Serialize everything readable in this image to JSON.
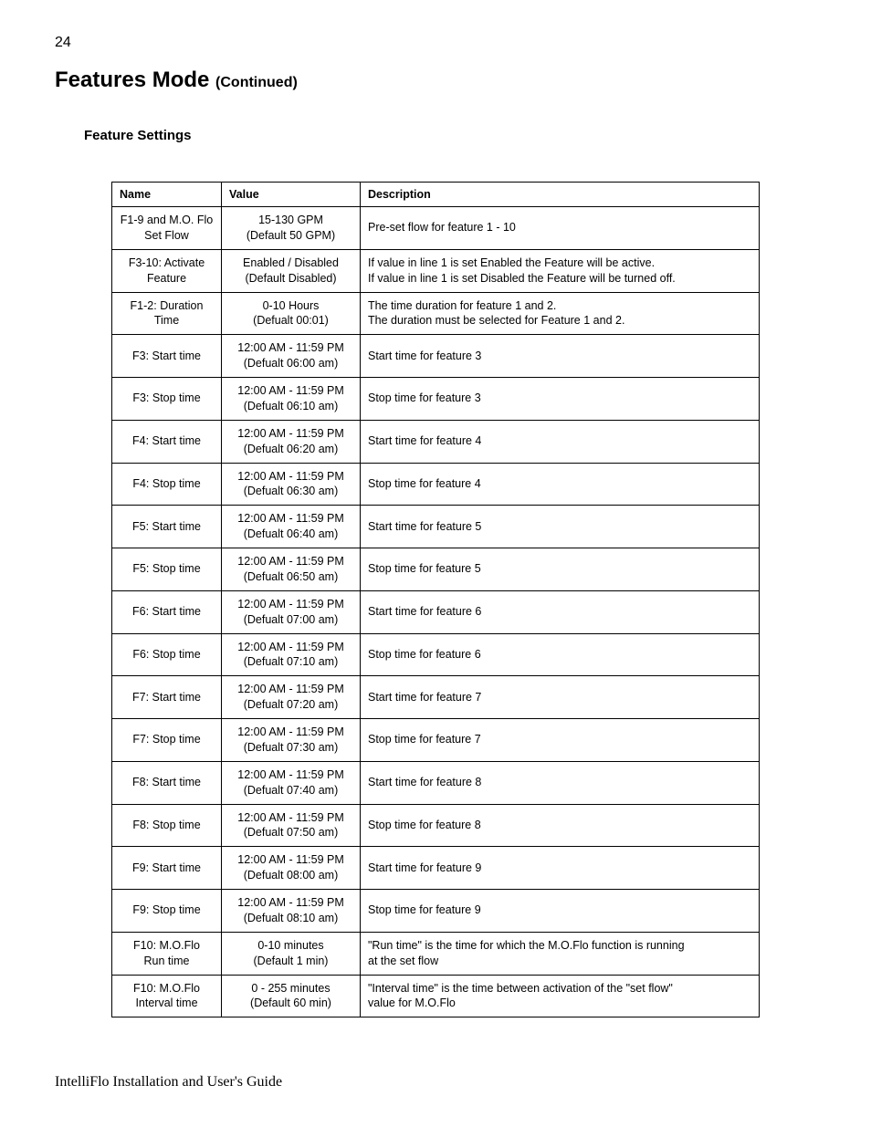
{
  "page_number": "24",
  "heading_main": "Features Mode",
  "heading_continued": "(Continued)",
  "section_heading": "Feature Settings",
  "footer_text": "IntelliFlo Installation and User's Guide",
  "table": {
    "headers": {
      "name": "Name",
      "value": "Value",
      "description": "Description"
    },
    "rows": [
      {
        "name_l1": "F1-9 and M.O. Flo",
        "name_l2": "Set Flow",
        "value_l1": "15-130 GPM",
        "value_l2": "(Default 50 GPM)",
        "desc_l1": "Pre-set flow for feature 1 - 10",
        "desc_l2": ""
      },
      {
        "name_l1": "F3-10: Activate",
        "name_l2": "Feature",
        "value_l1": "Enabled / Disabled",
        "value_l2": "(Default Disabled)",
        "desc_l1": "If value in line 1 is set Enabled the Feature will be active.",
        "desc_l2": "If value in line 1 is set Disabled the Feature will be turned off."
      },
      {
        "name_l1": "F1-2: Duration Time",
        "name_l2": "",
        "value_l1": "0-10 Hours",
        "value_l2": "(Defualt 00:01)",
        "desc_l1": "The time duration for feature 1 and 2.",
        "desc_l2": "The duration must be selected for Feature 1 and 2."
      },
      {
        "name_l1": "F3: Start time",
        "name_l2": "",
        "value_l1": "12:00 AM - 11:59 PM",
        "value_l2": "(Defualt 06:00 am)",
        "desc_l1": "Start time for feature 3",
        "desc_l2": ""
      },
      {
        "name_l1": "F3: Stop time",
        "name_l2": "",
        "value_l1": "12:00 AM - 11:59 PM",
        "value_l2": "(Defualt 06:10 am)",
        "desc_l1": "Stop time for feature 3",
        "desc_l2": ""
      },
      {
        "name_l1": "F4: Start time",
        "name_l2": "",
        "value_l1": "12:00 AM - 11:59 PM",
        "value_l2": "(Defualt 06:20 am)",
        "desc_l1": "Start time for feature 4",
        "desc_l2": ""
      },
      {
        "name_l1": "F4: Stop time",
        "name_l2": "",
        "value_l1": "12:00 AM - 11:59 PM",
        "value_l2": "(Defualt 06:30 am)",
        "desc_l1": "Stop time for feature 4",
        "desc_l2": ""
      },
      {
        "name_l1": "F5: Start time",
        "name_l2": "",
        "value_l1": "12:00 AM - 11:59 PM",
        "value_l2": "(Defualt 06:40 am)",
        "desc_l1": "Start time for feature 5",
        "desc_l2": ""
      },
      {
        "name_l1": "F5: Stop time",
        "name_l2": "",
        "value_l1": "12:00 AM - 11:59 PM",
        "value_l2": "(Defualt 06:50 am)",
        "desc_l1": "Stop time for feature 5",
        "desc_l2": ""
      },
      {
        "name_l1": "F6: Start time",
        "name_l2": "",
        "value_l1": "12:00 AM - 11:59 PM",
        "value_l2": "(Defualt 07:00 am)",
        "desc_l1": "Start time for feature 6",
        "desc_l2": ""
      },
      {
        "name_l1": "F6: Stop time",
        "name_l2": "",
        "value_l1": "12:00 AM - 11:59 PM",
        "value_l2": "(Defualt 07:10 am)",
        "desc_l1": "Stop time for feature 6",
        "desc_l2": ""
      },
      {
        "name_l1": "F7: Start time",
        "name_l2": "",
        "value_l1": "12:00 AM - 11:59 PM",
        "value_l2": "(Defualt 07:20 am)",
        "desc_l1": "Start time for feature 7",
        "desc_l2": ""
      },
      {
        "name_l1": "F7: Stop time",
        "name_l2": "",
        "value_l1": "12:00 AM - 11:59 PM",
        "value_l2": "(Defualt 07:30 am)",
        "desc_l1": "Stop time for feature 7",
        "desc_l2": ""
      },
      {
        "name_l1": "F8: Start time",
        "name_l2": "",
        "value_l1": "12:00 AM - 11:59 PM",
        "value_l2": "(Defualt 07:40 am)",
        "desc_l1": "Start time for feature 8",
        "desc_l2": ""
      },
      {
        "name_l1": "F8: Stop time",
        "name_l2": "",
        "value_l1": "12:00 AM - 11:59 PM",
        "value_l2": "(Defualt 07:50 am)",
        "desc_l1": "Stop time for feature 8",
        "desc_l2": ""
      },
      {
        "name_l1": "F9: Start time",
        "name_l2": "",
        "value_l1": "12:00 AM - 11:59 PM",
        "value_l2": "(Defualt 08:00 am)",
        "desc_l1": "Start time for feature 9",
        "desc_l2": ""
      },
      {
        "name_l1": "F9: Stop time",
        "name_l2": "",
        "value_l1": "12:00 AM - 11:59 PM",
        "value_l2": "(Defualt 08:10 am)",
        "desc_l1": "Stop time for feature 9",
        "desc_l2": ""
      },
      {
        "name_l1": "F10: M.O.Flo",
        "name_l2": "Run time",
        "value_l1": "0-10 minutes",
        "value_l2": "(Default 1 min)",
        "desc_l1": "\"Run time\" is the time for which the M.O.Flo function is running",
        "desc_l2": "at the set flow"
      },
      {
        "name_l1": "F10: M.O.Flo",
        "name_l2": "Interval time",
        "value_l1": "0 - 255 minutes",
        "value_l2": "(Default 60 min)",
        "desc_l1": "\"Interval time\" is the time between activation of the \"set flow\"",
        "desc_l2": "value for M.O.Flo"
      }
    ]
  }
}
